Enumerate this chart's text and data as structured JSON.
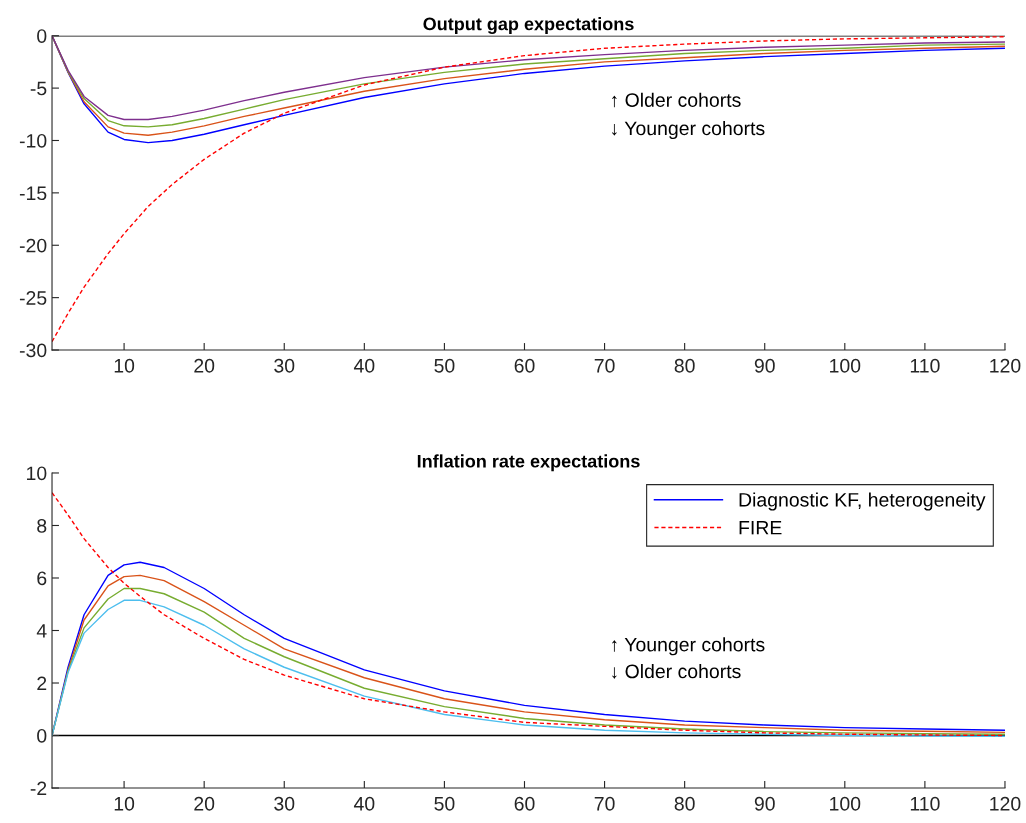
{
  "chart_data": [
    {
      "type": "line",
      "title": "Output gap expectations",
      "xlim": [
        1,
        120
      ],
      "xticks": [
        10,
        20,
        30,
        40,
        50,
        60,
        70,
        80,
        90,
        100,
        110,
        120
      ],
      "ylim": [
        -30,
        0
      ],
      "yticks": [
        -30,
        -25,
        -20,
        -15,
        -10,
        -5,
        0
      ],
      "grid": false,
      "legend": false,
      "ref_lines": [
        {
          "axis": "y",
          "value": 0,
          "color": "#000000",
          "line_style": "solid"
        }
      ],
      "annotations": [
        "↑ Older cohorts",
        "↓ Younger cohorts"
      ],
      "series": [
        {
          "color": "#0000ff",
          "x": [
            1,
            3,
            5,
            8,
            10,
            13,
            16,
            20,
            25,
            30,
            40,
            50,
            60,
            70,
            80,
            90,
            100,
            110,
            120
          ],
          "values": [
            0,
            -3.5,
            -6.5,
            -9.2,
            -9.9,
            -10.2,
            -10.0,
            -9.4,
            -8.5,
            -7.6,
            -5.9,
            -4.6,
            -3.6,
            -2.9,
            -2.4,
            -2.0,
            -1.7,
            -1.4,
            -1.2
          ]
        },
        {
          "color": "#d95319",
          "x": [
            1,
            3,
            5,
            8,
            10,
            13,
            16,
            20,
            25,
            30,
            40,
            50,
            60,
            70,
            80,
            90,
            100,
            110,
            120
          ],
          "values": [
            0,
            -3.45,
            -6.3,
            -8.7,
            -9.3,
            -9.5,
            -9.2,
            -8.6,
            -7.7,
            -6.9,
            -5.3,
            -4.1,
            -3.2,
            -2.5,
            -2.1,
            -1.7,
            -1.4,
            -1.2,
            -1.0
          ]
        },
        {
          "color": "#77ac30",
          "x": [
            1,
            3,
            5,
            8,
            10,
            13,
            16,
            20,
            25,
            30,
            40,
            50,
            60,
            70,
            80,
            90,
            100,
            110,
            120
          ],
          "values": [
            0,
            -3.4,
            -6.0,
            -8.1,
            -8.6,
            -8.7,
            -8.5,
            -7.9,
            -7.0,
            -6.1,
            -4.6,
            -3.5,
            -2.7,
            -2.2,
            -1.7,
            -1.4,
            -1.2,
            -0.9,
            -0.8
          ]
        },
        {
          "color": "#7e2f8e",
          "x": [
            1,
            3,
            5,
            8,
            10,
            13,
            16,
            20,
            25,
            30,
            40,
            50,
            60,
            70,
            80,
            90,
            100,
            110,
            120
          ],
          "values": [
            0,
            -3.3,
            -5.8,
            -7.6,
            -8.0,
            -8.0,
            -7.7,
            -7.1,
            -6.2,
            -5.4,
            -4.0,
            -3.0,
            -2.3,
            -1.8,
            -1.4,
            -1.1,
            -0.9,
            -0.7,
            -0.6
          ]
        },
        {
          "color": "#ff0000",
          "line_style": "dashed",
          "x": [
            1,
            3,
            5,
            8,
            10,
            13,
            16,
            20,
            25,
            30,
            40,
            50,
            60,
            70,
            80,
            90,
            100,
            110,
            120
          ],
          "values": [
            -29.2,
            -26.5,
            -24.0,
            -20.8,
            -18.9,
            -16.3,
            -14.2,
            -11.8,
            -9.3,
            -7.4,
            -4.7,
            -3.0,
            -1.9,
            -1.2,
            -0.8,
            -0.5,
            -0.3,
            -0.2,
            -0.1
          ]
        }
      ]
    },
    {
      "type": "line",
      "title": "Inflation rate expectations",
      "xlim": [
        1,
        120
      ],
      "xticks": [
        10,
        20,
        30,
        40,
        50,
        60,
        70,
        80,
        90,
        100,
        110,
        120
      ],
      "ylim": [
        -2,
        10
      ],
      "yticks": [
        -2,
        0,
        2,
        4,
        6,
        8,
        10
      ],
      "grid": false,
      "legend": "top right",
      "ref_lines": [
        {
          "axis": "y",
          "value": 0,
          "color": "#000000",
          "line_style": "solid"
        }
      ],
      "annotations": [
        "↑ Younger cohorts",
        "↓ Older cohorts"
      ],
      "series": [
        {
          "name": "Diagnostic KF, heterogeneity",
          "color": "#0000ff",
          "x": [
            1,
            3,
            5,
            8,
            10,
            12,
            15,
            20,
            25,
            30,
            40,
            50,
            60,
            70,
            80,
            90,
            100,
            110,
            120
          ],
          "values": [
            0,
            2.6,
            4.6,
            6.1,
            6.5,
            6.6,
            6.4,
            5.6,
            4.6,
            3.7,
            2.5,
            1.7,
            1.15,
            0.8,
            0.55,
            0.4,
            0.3,
            0.25,
            0.2
          ]
        },
        {
          "color": "#d95319",
          "x": [
            1,
            3,
            5,
            8,
            10,
            12,
            15,
            20,
            25,
            30,
            40,
            50,
            60,
            70,
            80,
            90,
            100,
            110,
            120
          ],
          "values": [
            0,
            2.5,
            4.4,
            5.7,
            6.05,
            6.1,
            5.9,
            5.1,
            4.2,
            3.3,
            2.2,
            1.4,
            0.9,
            0.6,
            0.4,
            0.3,
            0.2,
            0.16,
            0.12
          ]
        },
        {
          "color": "#77ac30",
          "x": [
            1,
            3,
            5,
            8,
            10,
            12,
            15,
            20,
            25,
            30,
            40,
            50,
            60,
            70,
            80,
            90,
            100,
            110,
            120
          ],
          "values": [
            0,
            2.45,
            4.1,
            5.2,
            5.6,
            5.6,
            5.4,
            4.7,
            3.7,
            3.0,
            1.8,
            1.1,
            0.65,
            0.4,
            0.25,
            0.15,
            0.1,
            0.07,
            0.05
          ]
        },
        {
          "color": "#4dbeee",
          "x": [
            1,
            3,
            5,
            8,
            10,
            12,
            15,
            20,
            25,
            30,
            40,
            50,
            60,
            70,
            80,
            90,
            100,
            110,
            120
          ],
          "values": [
            0,
            2.4,
            3.9,
            4.8,
            5.15,
            5.15,
            4.9,
            4.2,
            3.3,
            2.6,
            1.5,
            0.8,
            0.4,
            0.2,
            0.1,
            0.05,
            0.0,
            -0.02,
            -0.03
          ]
        },
        {
          "name": "FIRE",
          "color": "#ff0000",
          "line_style": "dashed",
          "x": [
            1,
            3,
            5,
            8,
            10,
            12,
            15,
            20,
            25,
            30,
            40,
            50,
            60,
            70,
            80,
            90,
            100,
            110,
            120
          ],
          "values": [
            9.25,
            8.4,
            7.5,
            6.4,
            5.8,
            5.3,
            4.6,
            3.7,
            2.9,
            2.3,
            1.4,
            0.9,
            0.5,
            0.35,
            0.2,
            0.1,
            0.05,
            0.02,
            0.0
          ]
        }
      ]
    }
  ]
}
